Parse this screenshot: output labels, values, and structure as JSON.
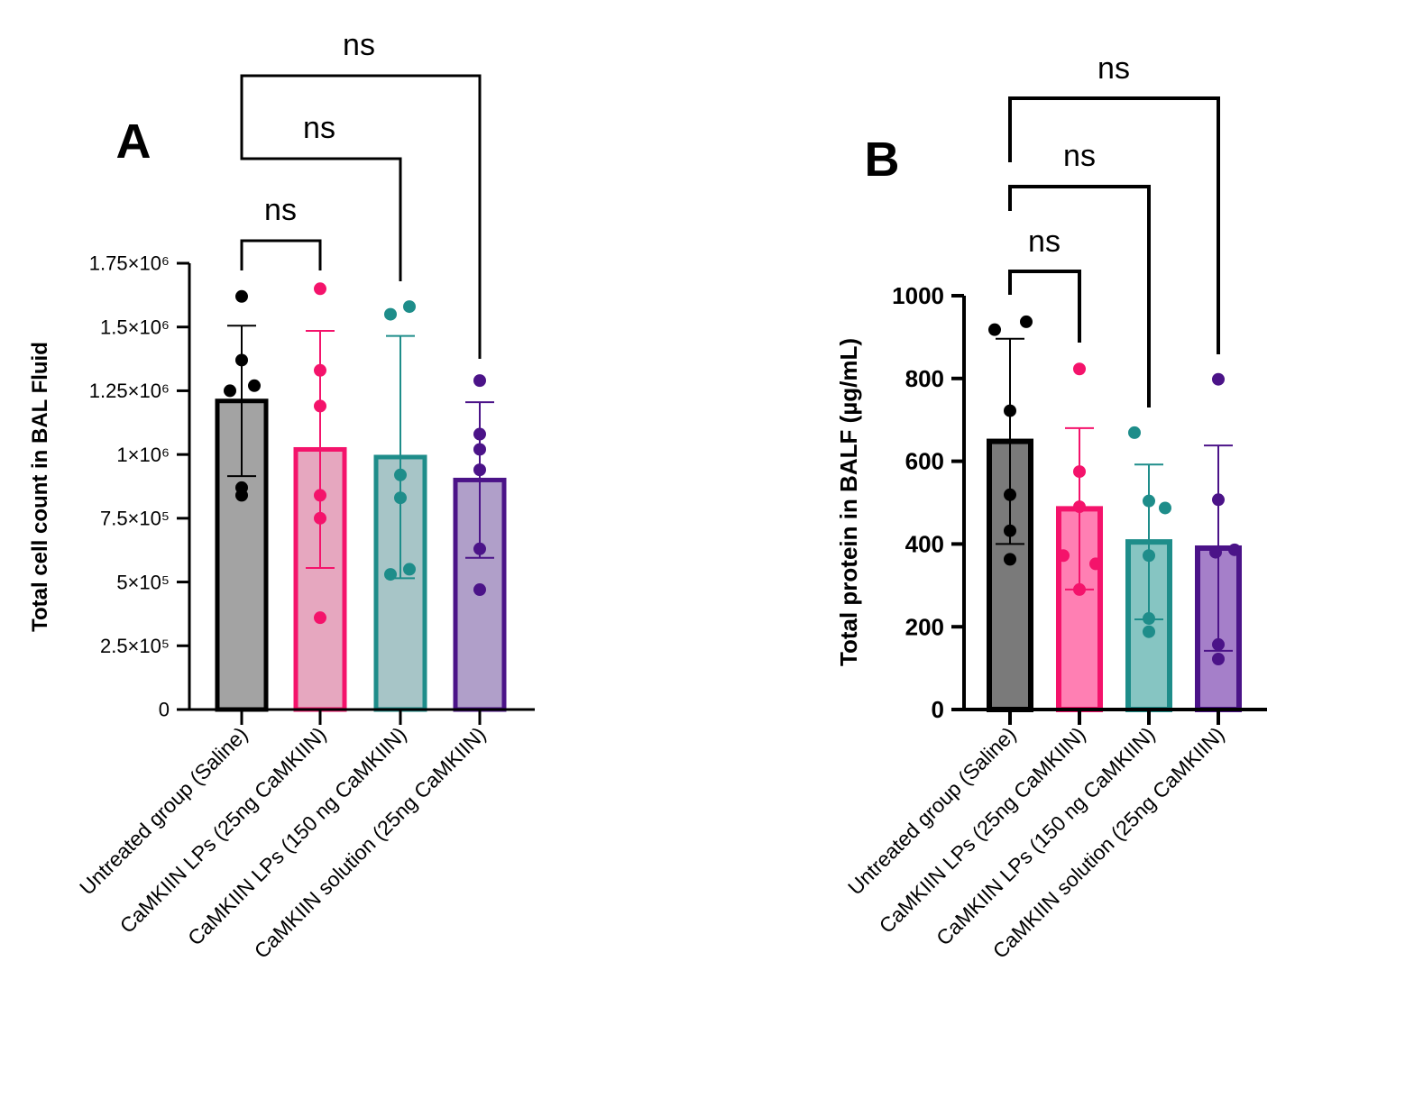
{
  "chart_data": [
    {
      "type": "bar",
      "panel_label": "A",
      "ylabel": "Total cell count in BAL Fluid",
      "ylim": [
        0,
        1750000
      ],
      "ytick_values": [
        0,
        250000,
        500000,
        750000,
        1000000,
        1250000,
        1500000,
        1750000
      ],
      "ytick_labels": [
        "0",
        "2.5×10⁵",
        "5×10⁵",
        "7.5×10⁵",
        "1×10⁶",
        "1.25×10⁶",
        "1.5×10⁶",
        "1.75×10⁶"
      ],
      "categories": [
        "Untreated group (Saline)",
        "CaMKIIN LPs (25ng CaMKIIN)",
        "CaMKIIN LPs (150 ng CaMKIIN)",
        "CaMKIIN solution (25ng CaMKIIN)"
      ],
      "means": [
        1210000,
        1020000,
        990000,
        900000
      ],
      "sd": [
        295000,
        465000,
        475000,
        305000
      ],
      "points": [
        [
          1620000,
          1370000,
          1270000,
          1250000,
          870000,
          840000
        ],
        [
          1650000,
          1330000,
          1190000,
          840000,
          750000,
          360000
        ],
        [
          1550000,
          1580000,
          920000,
          830000,
          550000,
          530000
        ],
        [
          1290000,
          1080000,
          1020000,
          940000,
          630000,
          470000
        ]
      ],
      "comparisons": [
        {
          "from": 0,
          "to": 1,
          "label": "ns"
        },
        {
          "from": 0,
          "to": 2,
          "label": "ns"
        },
        {
          "from": 0,
          "to": 3,
          "label": "ns"
        }
      ]
    },
    {
      "type": "bar",
      "panel_label": "B",
      "ylabel": "Total protein in BALF (µg/mL)",
      "ylim": [
        0,
        1000
      ],
      "ytick_values": [
        0,
        200,
        400,
        600,
        800,
        1000
      ],
      "ytick_labels": [
        "0",
        "200",
        "400",
        "600",
        "800",
        "1000"
      ],
      "categories": [
        "Untreated group (Saline)",
        "CaMKIIN LPs (25ng CaMKIIN)",
        "CaMKIIN LPs (150 ng CaMKIIN)",
        "CaMKIIN solution (25ng CaMKIIN)"
      ],
      "means": [
        648,
        485,
        405,
        390
      ],
      "sd": [
        248,
        195,
        187,
        248
      ],
      "points": [
        [
          918,
          937,
          722,
          519,
          432,
          363
        ],
        [
          823,
          575,
          490,
          372,
          352,
          290
        ],
        [
          669,
          504,
          487,
          372,
          220,
          188
        ],
        [
          798,
          507,
          386,
          380,
          157,
          122
        ]
      ],
      "comparisons": [
        {
          "from": 0,
          "to": 1,
          "label": "ns"
        },
        {
          "from": 0,
          "to": 2,
          "label": "ns"
        },
        {
          "from": 0,
          "to": 3,
          "label": "ns"
        }
      ]
    }
  ],
  "palette": {
    "edge": [
      "#000000",
      "#f4136b",
      "#1e8d8a",
      "#4b1388"
    ],
    "fill_a": [
      "#a3a3a3",
      "#e6a7bf",
      "#a7c5c7",
      "#b09fc9"
    ],
    "fill_b": [
      "#7a7a7a",
      "#ff7fb3",
      "#86c5c2",
      "#a57fc9"
    ],
    "axis": "#000000"
  }
}
